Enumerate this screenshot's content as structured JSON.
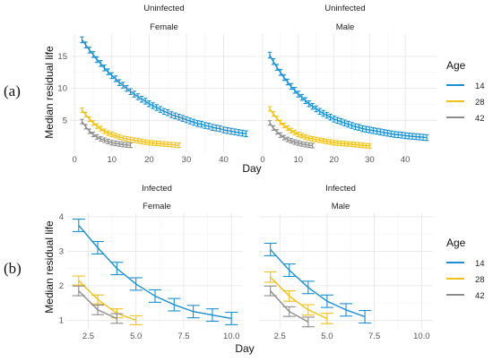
{
  "figure": {
    "panel_labels": [
      "(a)",
      "(b)"
    ]
  },
  "legend": {
    "title": "Age",
    "items": [
      "14",
      "28",
      "42"
    ],
    "colors": {
      "14": "#1a8fd1",
      "28": "#f2c01a",
      "42": "#8c8c8c"
    }
  },
  "chart_data": [
    {
      "type": "line",
      "panel": "(a)",
      "strip_top": "Uninfected",
      "strip_bottom": "Female",
      "xlabel": "Day",
      "ylabel": "Median residual life",
      "xlim": [
        -1,
        49
      ],
      "ylim": [
        0,
        18.5
      ],
      "xticks": [
        0,
        10,
        20,
        30,
        40
      ],
      "yticks": [
        5,
        10,
        15
      ],
      "series": [
        {
          "name": "14",
          "x": [
            2,
            3,
            4,
            5,
            6,
            7,
            8,
            9,
            10,
            11,
            12,
            13,
            14,
            15,
            16,
            17,
            18,
            19,
            20,
            21,
            22,
            23,
            24,
            25,
            26,
            27,
            28,
            29,
            30,
            31,
            32,
            33,
            34,
            35,
            36,
            37,
            38,
            39,
            40,
            41,
            42,
            43,
            44,
            45,
            46
          ],
          "y": [
            17.6,
            16.8,
            16.0,
            15.3,
            14.5,
            13.9,
            13.2,
            12.6,
            12.0,
            11.5,
            10.9,
            10.5,
            10.0,
            9.5,
            9.1,
            8.7,
            8.3,
            8.0,
            7.6,
            7.3,
            7.0,
            6.7,
            6.4,
            6.2,
            5.9,
            5.7,
            5.5,
            5.3,
            5.1,
            4.9,
            4.7,
            4.5,
            4.4,
            4.2,
            4.1,
            3.9,
            3.8,
            3.7,
            3.5,
            3.4,
            3.3,
            3.2,
            3.1,
            3.0,
            2.9
          ],
          "err": 0.45
        },
        {
          "name": "28",
          "x": [
            2,
            3,
            4,
            5,
            6,
            7,
            8,
            9,
            10,
            11,
            12,
            13,
            14,
            15,
            16,
            17,
            18,
            19,
            20,
            21,
            22,
            23,
            24,
            25,
            26,
            27,
            28
          ],
          "y": [
            6.6,
            5.9,
            5.2,
            4.6,
            4.1,
            3.7,
            3.3,
            3.0,
            2.8,
            2.6,
            2.4,
            2.2,
            2.1,
            2.0,
            1.9,
            1.8,
            1.7,
            1.6,
            1.5,
            1.45,
            1.4,
            1.35,
            1.3,
            1.25,
            1.2,
            1.15,
            1.1
          ],
          "err": 0.35
        },
        {
          "name": "42",
          "x": [
            2,
            3,
            4,
            5,
            6,
            7,
            8,
            9,
            10,
            11,
            12,
            13,
            14,
            15
          ],
          "y": [
            4.8,
            4.0,
            3.3,
            2.8,
            2.4,
            2.1,
            1.9,
            1.7,
            1.5,
            1.4,
            1.3,
            1.2,
            1.15,
            1.1
          ],
          "err": 0.35
        }
      ]
    },
    {
      "type": "line",
      "panel": "(a)",
      "strip_top": "Uninfected",
      "strip_bottom": "Male",
      "xlabel": "Day",
      "ylabel": "Median residual life",
      "xlim": [
        -1,
        49
      ],
      "ylim": [
        0,
        18.5
      ],
      "xticks": [
        0,
        10,
        20,
        30,
        40
      ],
      "yticks": [
        5,
        10,
        15
      ],
      "series": [
        {
          "name": "14",
          "x": [
            2,
            3,
            4,
            5,
            6,
            7,
            8,
            9,
            10,
            11,
            12,
            13,
            14,
            15,
            16,
            17,
            18,
            19,
            20,
            21,
            22,
            23,
            24,
            25,
            26,
            27,
            28,
            29,
            30,
            31,
            32,
            33,
            34,
            35,
            36,
            37,
            38,
            39,
            40,
            41,
            42,
            43,
            44,
            45,
            46
          ],
          "y": [
            15.2,
            14.2,
            13.3,
            12.5,
            11.7,
            11.0,
            10.3,
            9.7,
            9.1,
            8.6,
            8.1,
            7.6,
            7.2,
            6.8,
            6.4,
            6.1,
            5.8,
            5.5,
            5.2,
            5.0,
            4.8,
            4.6,
            4.4,
            4.2,
            4.0,
            3.9,
            3.7,
            3.6,
            3.5,
            3.4,
            3.3,
            3.2,
            3.1,
            3.0,
            2.9,
            2.8,
            2.75,
            2.7,
            2.6,
            2.55,
            2.5,
            2.45,
            2.4,
            2.35,
            2.3
          ],
          "err": 0.45
        },
        {
          "name": "28",
          "x": [
            2,
            3,
            4,
            5,
            6,
            7,
            8,
            9,
            10,
            11,
            12,
            13,
            14,
            15,
            16,
            17,
            18,
            19,
            20,
            21,
            22,
            23,
            24,
            25,
            26,
            27,
            28,
            29,
            30
          ],
          "y": [
            6.8,
            6.0,
            5.3,
            4.7,
            4.2,
            3.8,
            3.4,
            3.1,
            2.8,
            2.6,
            2.4,
            2.2,
            2.1,
            2.0,
            1.9,
            1.8,
            1.7,
            1.6,
            1.5,
            1.45,
            1.4,
            1.35,
            1.3,
            1.25,
            1.2,
            1.15,
            1.1,
            1.05,
            1.0
          ],
          "err": 0.35
        },
        {
          "name": "42",
          "x": [
            2,
            3,
            4,
            5,
            6,
            7,
            8,
            9,
            10,
            11,
            12,
            13,
            14
          ],
          "y": [
            4.6,
            3.8,
            3.2,
            2.7,
            2.3,
            2.0,
            1.8,
            1.6,
            1.45,
            1.3,
            1.2,
            1.1,
            1.05
          ],
          "err": 0.35
        }
      ]
    },
    {
      "type": "line",
      "panel": "(b)",
      "strip_top": "Infected",
      "strip_bottom": "Female",
      "xlabel": "Day",
      "ylabel": "Median residual life",
      "xlim": [
        1.4,
        10.6
      ],
      "ylim": [
        0.75,
        4.1
      ],
      "xticks": [
        2.5,
        5.0,
        7.5,
        10.0
      ],
      "xticklabels": [
        "2.5",
        "5.0",
        "7.5",
        "10.0"
      ],
      "yticks": [
        1,
        2,
        3,
        4
      ],
      "series": [
        {
          "name": "14",
          "x": [
            2,
            3,
            4,
            5,
            6,
            7,
            8,
            9,
            10
          ],
          "y": [
            3.75,
            3.1,
            2.5,
            2.05,
            1.7,
            1.45,
            1.25,
            1.15,
            1.05
          ],
          "err": 0.18
        },
        {
          "name": "28",
          "x": [
            2,
            3,
            4,
            5
          ],
          "y": [
            2.15,
            1.6,
            1.2,
            1.0
          ],
          "err": 0.13
        },
        {
          "name": "42",
          "x": [
            2,
            3,
            4
          ],
          "y": [
            1.85,
            1.3,
            1.05
          ],
          "err": 0.14
        }
      ]
    },
    {
      "type": "line",
      "panel": "(b)",
      "strip_top": "Infected",
      "strip_bottom": "Male",
      "xlabel": "Day",
      "ylabel": "Median residual life",
      "xlim": [
        1.4,
        10.6
      ],
      "ylim": [
        0.75,
        4.1
      ],
      "xticks": [
        2.5,
        5.0,
        7.5,
        10.0
      ],
      "xticklabels": [
        "2.5",
        "5.0",
        "7.5",
        "10.0"
      ],
      "yticks": [
        1,
        2,
        3,
        4
      ],
      "series": [
        {
          "name": "14",
          "x": [
            2,
            3,
            4,
            5,
            6,
            7
          ],
          "y": [
            3.05,
            2.45,
            1.95,
            1.55,
            1.3,
            1.1
          ],
          "err": 0.18
        },
        {
          "name": "28",
          "x": [
            2,
            3,
            4,
            5
          ],
          "y": [
            2.25,
            1.7,
            1.3,
            1.05
          ],
          "err": 0.15
        },
        {
          "name": "42",
          "x": [
            2,
            3,
            4
          ],
          "y": [
            1.85,
            1.25,
            0.95
          ],
          "err": 0.14
        }
      ]
    }
  ]
}
